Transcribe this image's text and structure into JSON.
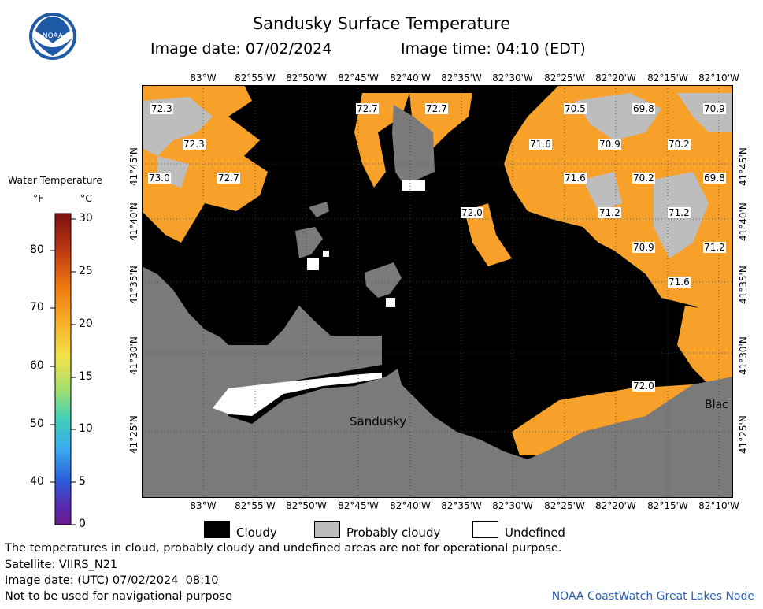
{
  "header": {
    "title": "Sandusky Surface Temperature",
    "image_date_label": "Image date: 07/02/2024",
    "image_time_label": "Image time: 04:10 (EDT)"
  },
  "logo": {
    "text": "NOAA",
    "icon": "noaa-logo-icon"
  },
  "colorbar": {
    "title": "Water Temperature",
    "unit_f": "°F",
    "unit_c": "°C",
    "f_ticks": [
      "80",
      "70",
      "60",
      "50",
      "40"
    ],
    "c_ticks": [
      "30",
      "25",
      "20",
      "15",
      "10",
      "5",
      "0"
    ]
  },
  "axes": {
    "lon_ticks": [
      "83°W",
      "82°55'W",
      "82°50'W",
      "82°45'W",
      "82°40'W",
      "82°35'W",
      "82°30'W",
      "82°25'W",
      "82°20'W",
      "82°15'W",
      "82°10'W"
    ],
    "lat_ticks": [
      "41°45'N",
      "41°40'N",
      "41°35'N",
      "41°30'N",
      "41°25'N"
    ]
  },
  "map": {
    "place_labels": [
      "Sandusky",
      "Blac"
    ],
    "temperature_labels": [
      "72.3",
      "72.3",
      "73.0",
      "72.7",
      "72.7",
      "72.7",
      "70.5",
      "69.8",
      "70.9",
      "71.6",
      "70.9",
      "70.2",
      "71.6",
      "70.2",
      "69.8",
      "72.0",
      "71.2",
      "71.2",
      "70.9",
      "71.2",
      "71.6",
      "72.0"
    ]
  },
  "legend": {
    "cloudy": "Cloudy",
    "probably_cloudy": "Probably cloudy",
    "undefined": "Undefined"
  },
  "footer": {
    "note": "The temperatures in cloud, probably cloudy and undefined areas are not for operational purpose.",
    "satellite": "Satellite: VIIRS_N21",
    "utc_date": "Image date: (UTC) 07/02/2024  08:10",
    "nav_warning": "Not to be used for navigational purpose",
    "credit": "NOAA CoastWatch Great Lakes Node"
  },
  "colors": {
    "cloudy": "#000000",
    "probably_cloudy": "#bdbdbd",
    "land": "#7a7a7a",
    "undefined": "#ffffff",
    "warm_water": "#f7a02a"
  }
}
